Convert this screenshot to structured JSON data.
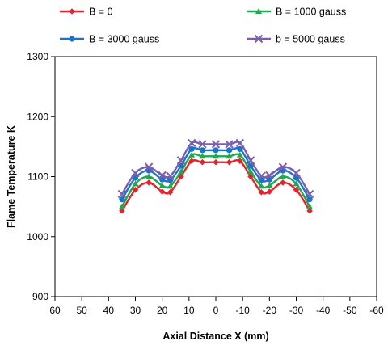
{
  "chart_data": {
    "type": "line",
    "title": "",
    "xlabel": "Axial Distance X (mm)",
    "ylabel": "Flame Temperature K",
    "xlim": [
      60,
      -60
    ],
    "ylim": [
      900,
      1300
    ],
    "x_axis_reversed": true,
    "x_ticks": [
      60,
      50,
      40,
      30,
      20,
      10,
      0,
      -10,
      -20,
      -30,
      -40,
      -50,
      -60
    ],
    "y_ticks": [
      900,
      1000,
      1100,
      1200,
      1300
    ],
    "grid": false,
    "legend_position": "top",
    "x": [
      35,
      30,
      25,
      20,
      17,
      13,
      9,
      5,
      0,
      -5,
      -9,
      -13,
      -17,
      -20,
      -25,
      -30,
      -35
    ],
    "series": [
      {
        "name": "B = 0",
        "color": "#e8222c",
        "marker": "diamond",
        "values": [
          1043,
          1078,
          1090,
          1075,
          1074,
          1100,
          1126,
          1124,
          1124,
          1124,
          1126,
          1100,
          1074,
          1075,
          1090,
          1078,
          1043
        ]
      },
      {
        "name": "B = 1000 gauss",
        "color": "#1fa84f",
        "marker": "triangle",
        "values": [
          1050,
          1088,
          1100,
          1085,
          1084,
          1108,
          1136,
          1134,
          1134,
          1134,
          1136,
          1108,
          1084,
          1085,
          1100,
          1088,
          1050
        ]
      },
      {
        "name": "B = 3000 gauss",
        "color": "#1a75c9",
        "marker": "circle",
        "values": [
          1062,
          1098,
          1110,
          1095,
          1094,
          1118,
          1146,
          1144,
          1144,
          1144,
          1146,
          1118,
          1094,
          1095,
          1110,
          1098,
          1062
        ]
      },
      {
        "name": "b = 5000 gauss",
        "color": "#7a5fb0",
        "marker": "x",
        "values": [
          1071,
          1106,
          1116,
          1102,
          1101,
          1127,
          1156,
          1154,
          1154,
          1154,
          1156,
          1127,
          1101,
          1102,
          1116,
          1106,
          1071
        ]
      }
    ]
  }
}
